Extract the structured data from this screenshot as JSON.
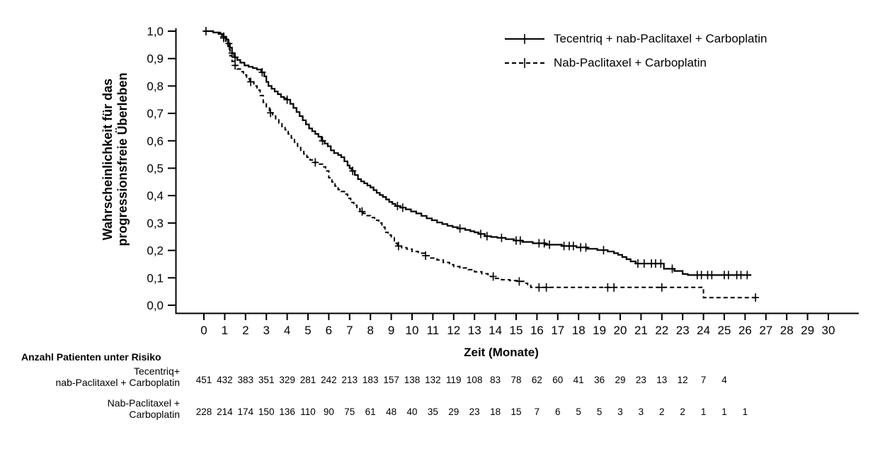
{
  "figure": {
    "background": "#ffffff",
    "ink_color": "#000000"
  },
  "chart_data": {
    "type": "line",
    "subtype": "kaplan-meier-step",
    "title": "",
    "xlabel": "Zeit (Monate)",
    "ylabel_lines": [
      "Wahrscheinlichkeit für das",
      "progressionsfreie Überleben"
    ],
    "xlim": [
      0,
      30
    ],
    "ylim": [
      0.0,
      1.0
    ],
    "grid": false,
    "x_ticks": [
      0,
      1,
      2,
      3,
      4,
      5,
      6,
      7,
      8,
      9,
      10,
      11,
      12,
      13,
      14,
      15,
      16,
      17,
      18,
      19,
      20,
      21,
      22,
      23,
      24,
      25,
      26,
      27,
      28,
      29,
      30
    ],
    "y_ticks": [
      {
        "value": 1.0,
        "label": "1,0"
      },
      {
        "value": 0.9,
        "label": "0,9"
      },
      {
        "value": 0.8,
        "label": "0,8"
      },
      {
        "value": 0.7,
        "label": "0,7"
      },
      {
        "value": 0.6,
        "label": "0,6"
      },
      {
        "value": 0.5,
        "label": "0,5"
      },
      {
        "value": 0.4,
        "label": "0,4"
      },
      {
        "value": 0.3,
        "label": "0,3"
      },
      {
        "value": 0.2,
        "label": "0,2"
      },
      {
        "value": 0.1,
        "label": "0,1"
      },
      {
        "value": 0.0,
        "label": "0,0"
      }
    ],
    "legend": {
      "position": "top-right",
      "entries": [
        {
          "label": "Tecentriq + nab-Paclitaxel + Carboplatin",
          "style": "solid"
        },
        {
          "label": "Nab-Paclitaxel + Carboplatin",
          "style": "dashed"
        }
      ]
    },
    "series": [
      {
        "name": "Tecentriq + nab-Paclitaxel + Carboplatin",
        "style": "solid",
        "points": [
          [
            0,
            1
          ],
          [
            0.35,
            1
          ],
          [
            0.45,
            0.995
          ],
          [
            0.7,
            0.99
          ],
          [
            0.95,
            0.98
          ],
          [
            1.05,
            0.97
          ],
          [
            1.15,
            0.955
          ],
          [
            1.25,
            0.94
          ],
          [
            1.35,
            0.92
          ],
          [
            1.45,
            0.905
          ],
          [
            1.6,
            0.895
          ],
          [
            1.75,
            0.885
          ],
          [
            1.95,
            0.875
          ],
          [
            2.15,
            0.87
          ],
          [
            2.35,
            0.865
          ],
          [
            2.55,
            0.86
          ],
          [
            2.75,
            0.85
          ],
          [
            2.9,
            0.835
          ],
          [
            3.0,
            0.815
          ],
          [
            3.1,
            0.8
          ],
          [
            3.25,
            0.79
          ],
          [
            3.4,
            0.78
          ],
          [
            3.55,
            0.77
          ],
          [
            3.7,
            0.76
          ],
          [
            3.85,
            0.755
          ],
          [
            4.0,
            0.75
          ],
          [
            4.15,
            0.735
          ],
          [
            4.3,
            0.72
          ],
          [
            4.45,
            0.705
          ],
          [
            4.6,
            0.69
          ],
          [
            4.75,
            0.675
          ],
          [
            4.9,
            0.66
          ],
          [
            5.05,
            0.645
          ],
          [
            5.2,
            0.635
          ],
          [
            5.35,
            0.625
          ],
          [
            5.5,
            0.615
          ],
          [
            5.65,
            0.6
          ],
          [
            5.8,
            0.59
          ],
          [
            5.95,
            0.58
          ],
          [
            6.1,
            0.565
          ],
          [
            6.25,
            0.555
          ],
          [
            6.45,
            0.548
          ],
          [
            6.6,
            0.54
          ],
          [
            6.75,
            0.525
          ],
          [
            6.9,
            0.51
          ],
          [
            7.0,
            0.5
          ],
          [
            7.1,
            0.49
          ],
          [
            7.25,
            0.475
          ],
          [
            7.4,
            0.46
          ],
          [
            7.55,
            0.452
          ],
          [
            7.7,
            0.445
          ],
          [
            7.85,
            0.437
          ],
          [
            8.0,
            0.43
          ],
          [
            8.15,
            0.42
          ],
          [
            8.3,
            0.41
          ],
          [
            8.45,
            0.402
          ],
          [
            8.6,
            0.395
          ],
          [
            8.75,
            0.386
          ],
          [
            8.9,
            0.377
          ],
          [
            9.05,
            0.37
          ],
          [
            9.2,
            0.362
          ],
          [
            9.45,
            0.356
          ],
          [
            9.7,
            0.35
          ],
          [
            9.95,
            0.342
          ],
          [
            10.2,
            0.335
          ],
          [
            10.45,
            0.326
          ],
          [
            10.7,
            0.317
          ],
          [
            10.95,
            0.31
          ],
          [
            11.2,
            0.302
          ],
          [
            11.45,
            0.296
          ],
          [
            11.7,
            0.29
          ],
          [
            11.95,
            0.285
          ],
          [
            12.2,
            0.28
          ],
          [
            12.55,
            0.275
          ],
          [
            12.8,
            0.27
          ],
          [
            13.0,
            0.266
          ],
          [
            13.2,
            0.26
          ],
          [
            13.5,
            0.252
          ],
          [
            13.8,
            0.249
          ],
          [
            14.1,
            0.246
          ],
          [
            14.5,
            0.241
          ],
          [
            14.9,
            0.236
          ],
          [
            15.3,
            0.231
          ],
          [
            15.8,
            0.226
          ],
          [
            16.4,
            0.221
          ],
          [
            17.2,
            0.216
          ],
          [
            17.9,
            0.211
          ],
          [
            18.4,
            0.206
          ],
          [
            18.9,
            0.201
          ],
          [
            19.4,
            0.196
          ],
          [
            19.7,
            0.19
          ],
          [
            19.9,
            0.184
          ],
          [
            20.1,
            0.176
          ],
          [
            20.3,
            0.168
          ],
          [
            20.5,
            0.16
          ],
          [
            20.75,
            0.152
          ],
          [
            22.1,
            0.133
          ],
          [
            22.6,
            0.125
          ],
          [
            23.0,
            0.114
          ],
          [
            23.25,
            0.11
          ],
          [
            26.3,
            0.11
          ]
        ],
        "censor_times": [
          0.1,
          0.95,
          1.2,
          1.35,
          1.5,
          2.8,
          4.0,
          5.7,
          7.15,
          9.3,
          9.55,
          12.3,
          13.3,
          13.6,
          14.3,
          15.0,
          15.2,
          16.1,
          16.35,
          16.6,
          17.3,
          17.55,
          17.75,
          18.1,
          18.35,
          19.2,
          20.85,
          21.15,
          21.5,
          21.7,
          21.95,
          22.5,
          23.7,
          23.9,
          24.2,
          24.4,
          25.0,
          25.2,
          25.6,
          25.8,
          26.1
        ]
      },
      {
        "name": "Nab-Paclitaxel + Carboplatin",
        "style": "dashed",
        "points": [
          [
            0,
            1
          ],
          [
            0.45,
            0.995
          ],
          [
            0.8,
            0.985
          ],
          [
            0.95,
            0.975
          ],
          [
            1.05,
            0.955
          ],
          [
            1.15,
            0.935
          ],
          [
            1.25,
            0.91
          ],
          [
            1.35,
            0.89
          ],
          [
            1.45,
            0.875
          ],
          [
            1.6,
            0.862
          ],
          [
            1.75,
            0.852
          ],
          [
            1.9,
            0.84
          ],
          [
            2.05,
            0.826
          ],
          [
            2.2,
            0.815
          ],
          [
            2.4,
            0.8
          ],
          [
            2.55,
            0.785
          ],
          [
            2.7,
            0.765
          ],
          [
            2.85,
            0.74
          ],
          [
            3.0,
            0.72
          ],
          [
            3.15,
            0.702
          ],
          [
            3.3,
            0.69
          ],
          [
            3.45,
            0.68
          ],
          [
            3.6,
            0.665
          ],
          [
            3.75,
            0.652
          ],
          [
            3.9,
            0.64
          ],
          [
            4.05,
            0.625
          ],
          [
            4.2,
            0.61
          ],
          [
            4.35,
            0.595
          ],
          [
            4.5,
            0.58
          ],
          [
            4.65,
            0.565
          ],
          [
            4.8,
            0.552
          ],
          [
            4.95,
            0.54
          ],
          [
            5.1,
            0.53
          ],
          [
            5.3,
            0.521
          ],
          [
            5.5,
            0.515
          ],
          [
            5.7,
            0.505
          ],
          [
            5.85,
            0.49
          ],
          [
            6.0,
            0.465
          ],
          [
            6.15,
            0.45
          ],
          [
            6.3,
            0.435
          ],
          [
            6.45,
            0.422
          ],
          [
            6.6,
            0.415
          ],
          [
            6.75,
            0.405
          ],
          [
            6.9,
            0.39
          ],
          [
            7.05,
            0.375
          ],
          [
            7.2,
            0.365
          ],
          [
            7.35,
            0.352
          ],
          [
            7.5,
            0.342
          ],
          [
            7.65,
            0.335
          ],
          [
            7.8,
            0.327
          ],
          [
            8.0,
            0.32
          ],
          [
            8.2,
            0.31
          ],
          [
            8.4,
            0.3
          ],
          [
            8.55,
            0.285
          ],
          [
            8.7,
            0.266
          ],
          [
            8.85,
            0.256
          ],
          [
            9.0,
            0.246
          ],
          [
            9.15,
            0.226
          ],
          [
            9.3,
            0.216
          ],
          [
            9.5,
            0.21
          ],
          [
            9.75,
            0.205
          ],
          [
            10.0,
            0.196
          ],
          [
            10.3,
            0.19
          ],
          [
            10.6,
            0.181
          ],
          [
            10.9,
            0.172
          ],
          [
            11.2,
            0.165
          ],
          [
            11.5,
            0.156
          ],
          [
            11.8,
            0.148
          ],
          [
            12.0,
            0.141
          ],
          [
            12.3,
            0.136
          ],
          [
            12.7,
            0.13
          ],
          [
            13.0,
            0.122
          ],
          [
            13.35,
            0.115
          ],
          [
            13.65,
            0.105
          ],
          [
            13.95,
            0.098
          ],
          [
            14.3,
            0.093
          ],
          [
            14.7,
            0.09
          ],
          [
            15.1,
            0.087
          ],
          [
            15.4,
            0.08
          ],
          [
            15.55,
            0.072
          ],
          [
            15.7,
            0.065
          ],
          [
            23.9,
            0.065
          ],
          [
            24.0,
            0.028
          ],
          [
            26.6,
            0.028
          ]
        ],
        "censor_times": [
          0.95,
          1.5,
          2.25,
          3.2,
          5.35,
          7.6,
          9.35,
          10.65,
          13.9,
          15.15,
          16.1,
          16.45,
          19.4,
          19.7,
          22.0,
          26.5
        ]
      }
    ]
  },
  "risk_table": {
    "header": "Anzahl Patienten unter Risiko",
    "rows": [
      {
        "label_lines": [
          "Tecentriq+",
          "nab-Paclitaxel + Carboplatin"
        ],
        "counts": [
          451,
          432,
          383,
          351,
          329,
          281,
          242,
          213,
          183,
          157,
          138,
          132,
          119,
          108,
          83,
          78,
          62,
          60,
          41,
          36,
          29,
          23,
          13,
          12,
          7,
          4
        ]
      },
      {
        "label_lines": [
          "Nab-Paclitaxel +",
          "Carboplatin"
        ],
        "counts": [
          228,
          214,
          174,
          150,
          136,
          110,
          90,
          75,
          61,
          48,
          40,
          35,
          29,
          23,
          18,
          15,
          7,
          6,
          5,
          5,
          3,
          3,
          2,
          2,
          1,
          1,
          1
        ]
      }
    ]
  }
}
